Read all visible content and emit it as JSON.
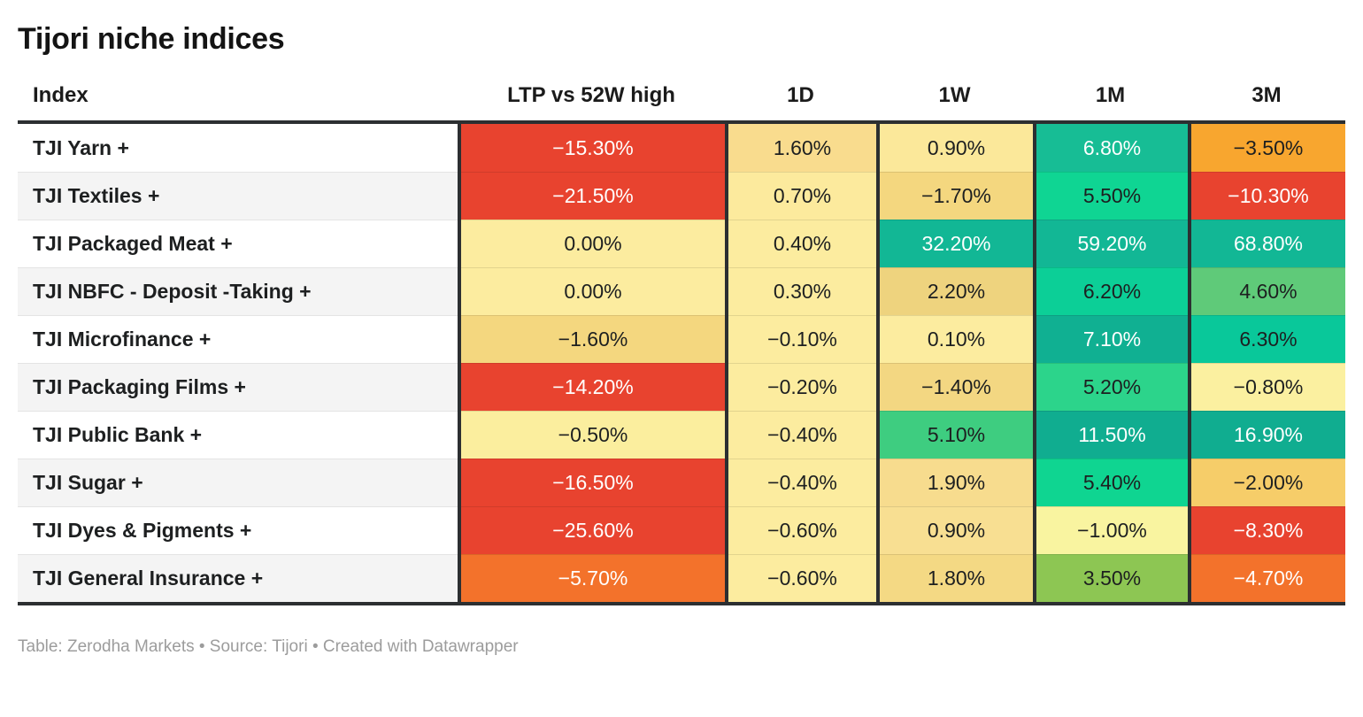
{
  "title": "Tijori niche indices",
  "footer": {
    "text": "Table: Zerodha Markets • Source: Tijori • Created with Datawrapper"
  },
  "colors": {
    "negative_strong": "#e8432f",
    "negative_orange": "#f3722b",
    "neutral_yellow": "#fcec9f",
    "positive_teal": "#12b795",
    "border_dark": "#2c2f31",
    "text_dark": "#1d1f20",
    "text_light": "#ffffff"
  },
  "table": {
    "columns": [
      "Index",
      "LTP vs 52W high",
      "1D",
      "1W",
      "1M",
      "3M"
    ],
    "rows": [
      {
        "index": "TJI Yarn +",
        "cells": [
          {
            "text": "−15.30%",
            "bg": "#e8432f",
            "fg": "#ffffff"
          },
          {
            "text": "1.60%",
            "bg": "#f9dc8e",
            "fg": "#1d1f20"
          },
          {
            "text": "0.90%",
            "bg": "#fbe89a",
            "fg": "#1d1f20"
          },
          {
            "text": "6.80%",
            "bg": "#17bd95",
            "fg": "#ffffff"
          },
          {
            "text": "−3.50%",
            "bg": "#f8a62f",
            "fg": "#1d1f20"
          }
        ]
      },
      {
        "index": "TJI Textiles +",
        "cells": [
          {
            "text": "−21.50%",
            "bg": "#e8432f",
            "fg": "#ffffff"
          },
          {
            "text": "0.70%",
            "bg": "#fcea9d",
            "fg": "#1d1f20"
          },
          {
            "text": "−1.70%",
            "bg": "#f4d77f",
            "fg": "#1d1f20"
          },
          {
            "text": "5.50%",
            "bg": "#0fd593",
            "fg": "#1d1f20"
          },
          {
            "text": "−10.30%",
            "bg": "#e8432f",
            "fg": "#ffffff"
          }
        ]
      },
      {
        "index": "TJI Packaged Meat +",
        "cells": [
          {
            "text": "0.00%",
            "bg": "#fcec9f",
            "fg": "#1d1f20"
          },
          {
            "text": "0.40%",
            "bg": "#fcec9f",
            "fg": "#1d1f20"
          },
          {
            "text": "32.20%",
            "bg": "#12b795",
            "fg": "#ffffff"
          },
          {
            "text": "59.20%",
            "bg": "#12b795",
            "fg": "#ffffff"
          },
          {
            "text": "68.80%",
            "bg": "#12b795",
            "fg": "#ffffff"
          }
        ]
      },
      {
        "index": "TJI NBFC - Deposit -Taking +",
        "cells": [
          {
            "text": "0.00%",
            "bg": "#fcec9f",
            "fg": "#1d1f20"
          },
          {
            "text": "0.30%",
            "bg": "#fcec9f",
            "fg": "#1d1f20"
          },
          {
            "text": "2.20%",
            "bg": "#eed37e",
            "fg": "#1d1f20"
          },
          {
            "text": "6.20%",
            "bg": "#0ccf97",
            "fg": "#1d1f20"
          },
          {
            "text": "4.60%",
            "bg": "#5fca79",
            "fg": "#1d1f20"
          }
        ]
      },
      {
        "index": "TJI Microfinance +",
        "cells": [
          {
            "text": "−1.60%",
            "bg": "#f4d77f",
            "fg": "#1d1f20"
          },
          {
            "text": "−0.10%",
            "bg": "#fcec9f",
            "fg": "#1d1f20"
          },
          {
            "text": "0.10%",
            "bg": "#fcec9f",
            "fg": "#1d1f20"
          },
          {
            "text": "7.10%",
            "bg": "#10b092",
            "fg": "#ffffff"
          },
          {
            "text": "6.30%",
            "bg": "#09c89a",
            "fg": "#1d1f20"
          }
        ]
      },
      {
        "index": "TJI Packaging Films +",
        "cells": [
          {
            "text": "−14.20%",
            "bg": "#e8432f",
            "fg": "#ffffff"
          },
          {
            "text": "−0.20%",
            "bg": "#fcec9f",
            "fg": "#1d1f20"
          },
          {
            "text": "−1.40%",
            "bg": "#f3d782",
            "fg": "#1d1f20"
          },
          {
            "text": "5.20%",
            "bg": "#2cd48b",
            "fg": "#1d1f20"
          },
          {
            "text": "−0.80%",
            "bg": "#fbf0a0",
            "fg": "#1d1f20"
          }
        ]
      },
      {
        "index": "TJI Public Bank +",
        "cells": [
          {
            "text": "−0.50%",
            "bg": "#fbee9e",
            "fg": "#1d1f20"
          },
          {
            "text": "−0.40%",
            "bg": "#fcec9f",
            "fg": "#1d1f20"
          },
          {
            "text": "5.10%",
            "bg": "#3ecd80",
            "fg": "#1d1f20"
          },
          {
            "text": "11.50%",
            "bg": "#10ad90",
            "fg": "#ffffff"
          },
          {
            "text": "16.90%",
            "bg": "#10ad90",
            "fg": "#ffffff"
          }
        ]
      },
      {
        "index": "TJI Sugar +",
        "cells": [
          {
            "text": "−16.50%",
            "bg": "#e8432f",
            "fg": "#ffffff"
          },
          {
            "text": "−0.40%",
            "bg": "#fcec9f",
            "fg": "#1d1f20"
          },
          {
            "text": "1.90%",
            "bg": "#f7dc8e",
            "fg": "#1d1f20"
          },
          {
            "text": "5.40%",
            "bg": "#0fd591",
            "fg": "#1d1f20"
          },
          {
            "text": "−2.00%",
            "bg": "#f6cd69",
            "fg": "#1d1f20"
          }
        ]
      },
      {
        "index": "TJI Dyes & Pigments +",
        "cells": [
          {
            "text": "−25.60%",
            "bg": "#e8432f",
            "fg": "#ffffff"
          },
          {
            "text": "−0.60%",
            "bg": "#fcec9f",
            "fg": "#1d1f20"
          },
          {
            "text": "0.90%",
            "bg": "#f8df92",
            "fg": "#1d1f20"
          },
          {
            "text": "−1.00%",
            "bg": "#f9f4a0",
            "fg": "#1d1f20"
          },
          {
            "text": "−8.30%",
            "bg": "#e8432f",
            "fg": "#ffffff"
          }
        ]
      },
      {
        "index": "TJI General Insurance +",
        "cells": [
          {
            "text": "−5.70%",
            "bg": "#f3722b",
            "fg": "#ffffff"
          },
          {
            "text": "−0.60%",
            "bg": "#fcec9f",
            "fg": "#1d1f20"
          },
          {
            "text": "1.80%",
            "bg": "#f4d984",
            "fg": "#1d1f20"
          },
          {
            "text": "3.50%",
            "bg": "#8dc653",
            "fg": "#1d1f20"
          },
          {
            "text": "−4.70%",
            "bg": "#f3722b",
            "fg": "#ffffff"
          }
        ]
      }
    ]
  },
  "chart_data": {
    "type": "table",
    "title": "Tijori niche indices",
    "columns": [
      "Index",
      "LTP vs 52W high",
      "1D",
      "1W",
      "1M",
      "3M"
    ],
    "rows": [
      [
        "TJI Yarn +",
        -15.3,
        1.6,
        0.9,
        6.8,
        -3.5
      ],
      [
        "TJI Textiles +",
        -21.5,
        0.7,
        -1.7,
        5.5,
        -10.3
      ],
      [
        "TJI Packaged Meat +",
        0.0,
        0.4,
        32.2,
        59.2,
        68.8
      ],
      [
        "TJI NBFC - Deposit -Taking +",
        0.0,
        0.3,
        2.2,
        6.2,
        4.6
      ],
      [
        "TJI Microfinance +",
        -1.6,
        -0.1,
        0.1,
        7.1,
        6.3
      ],
      [
        "TJI Packaging Films +",
        -14.2,
        -0.2,
        -1.4,
        5.2,
        -0.8
      ],
      [
        "TJI Public Bank +",
        -0.5,
        -0.4,
        5.1,
        11.5,
        16.9
      ],
      [
        "TJI Sugar +",
        -16.5,
        -0.4,
        1.9,
        5.4,
        -2.0
      ],
      [
        "TJI Dyes & Pigments +",
        -25.6,
        -0.6,
        0.9,
        -1.0,
        -8.3
      ],
      [
        "TJI General Insurance +",
        -5.7,
        -0.6,
        1.8,
        3.5,
        -4.7
      ]
    ],
    "units": "percent",
    "layout_hints": {
      "heatmap": "diverging red-yellow-green per cell",
      "legend": "none",
      "source_line": "Table: Zerodha Markets • Source: Tijori • Created with Datawrapper"
    }
  }
}
